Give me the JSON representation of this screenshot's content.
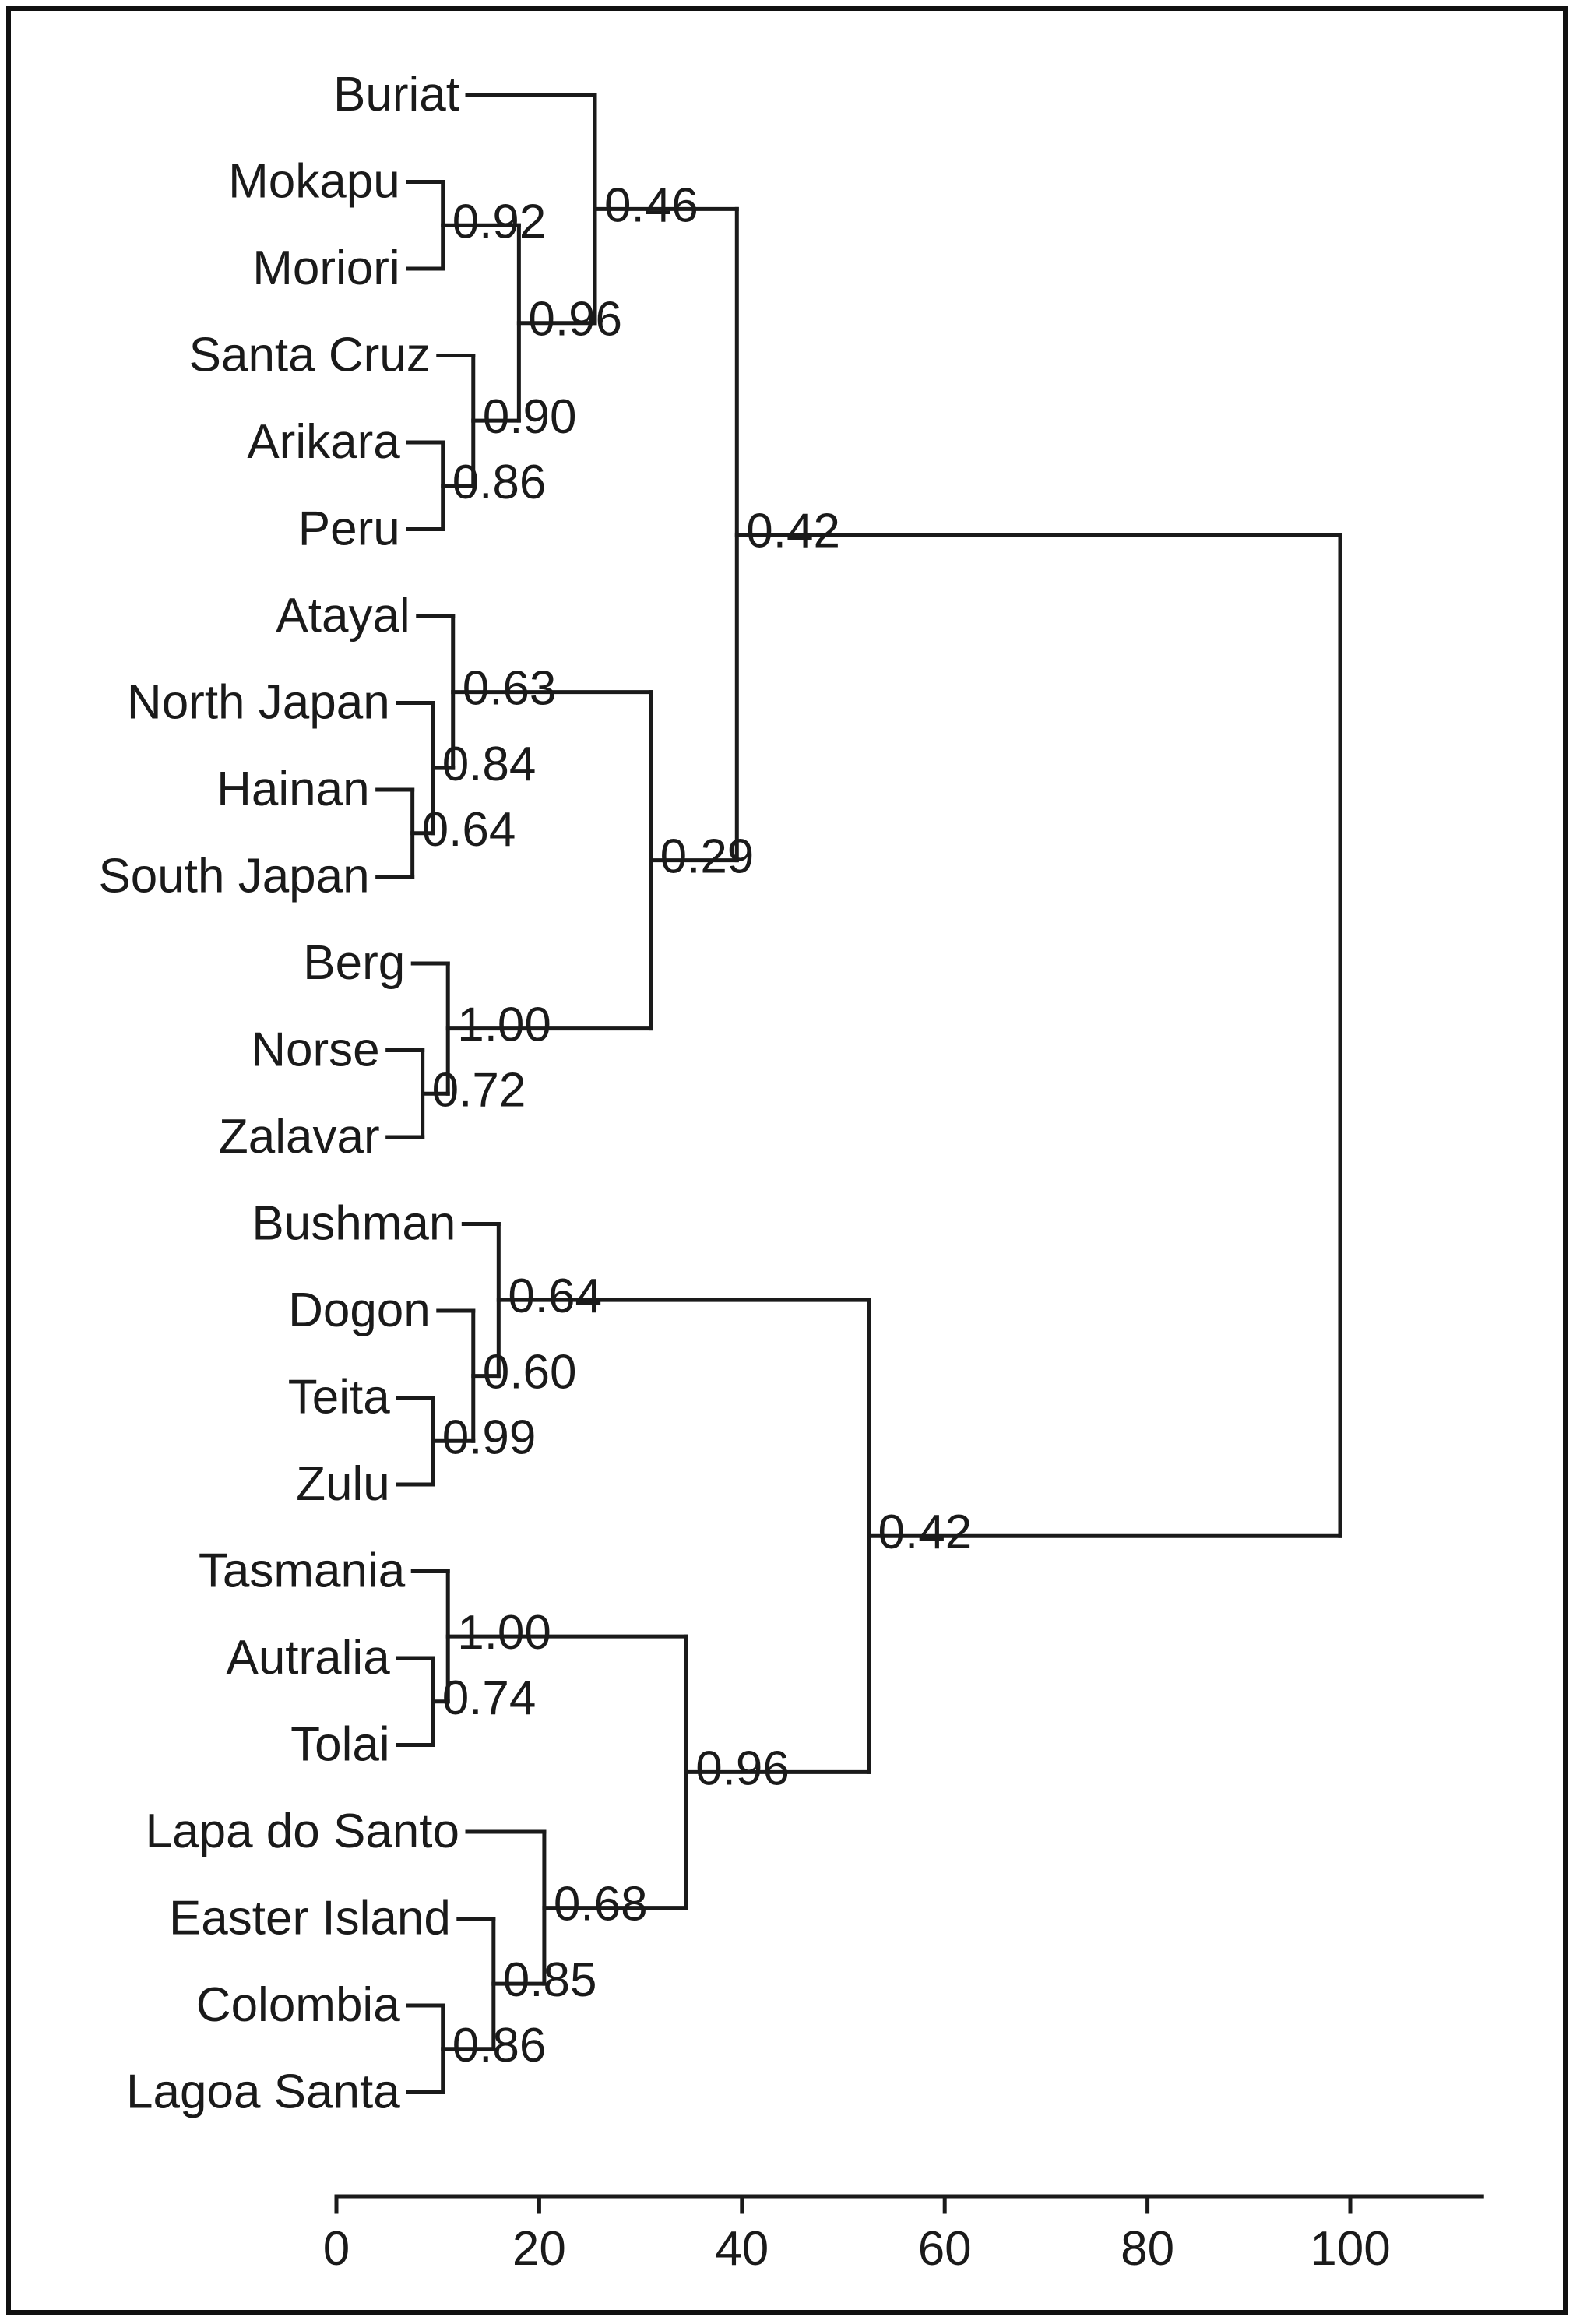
{
  "chart_data": {
    "type": "dendrogram",
    "leaves": [
      "Buriat",
      "Mokapu",
      "Moriori",
      "Santa Cruz",
      "Arikara",
      "Peru",
      "Atayal",
      "North Japan",
      "Hainan",
      "South Japan",
      "Berg",
      "Norse",
      "Zalavar",
      "Bushman",
      "Dogon",
      "Teita",
      "Zulu",
      "Tasmania",
      "Autralia",
      "Tolai",
      "Lapa do Santo",
      "Easter Island",
      "Colombia",
      "Lagoa Santa"
    ],
    "merges": [
      {
        "id": "mok_mor",
        "children": [
          "Mokapu",
          "Moriori"
        ],
        "height": 10.5,
        "support": "0.92"
      },
      {
        "id": "ari_per",
        "children": [
          "Arikara",
          "Peru"
        ],
        "height": 10.5,
        "support": "0.86"
      },
      {
        "id": "sc_ap",
        "children": [
          "Santa Cruz",
          "ari_per"
        ],
        "height": 13.5,
        "support": "0.90"
      },
      {
        "id": "mm_sc",
        "children": [
          "mok_mor",
          "sc_ap"
        ],
        "height": 18,
        "support": "0.96"
      },
      {
        "id": "bur_grp",
        "children": [
          "Buriat",
          "mm_sc"
        ],
        "height": 25.5,
        "support": "0.46"
      },
      {
        "id": "hai_sj",
        "children": [
          "Hainan",
          "South Japan"
        ],
        "height": 7.5,
        "support": "0.64"
      },
      {
        "id": "nj_grp",
        "children": [
          "North Japan",
          "hai_sj"
        ],
        "height": 9.5,
        "support": "0.84"
      },
      {
        "id": "ata_grp",
        "children": [
          "Atayal",
          "nj_grp"
        ],
        "height": 11.5,
        "support": "0.63"
      },
      {
        "id": "nor_zal",
        "children": [
          "Norse",
          "Zalavar"
        ],
        "height": 8.5,
        "support": "0.72"
      },
      {
        "id": "berg_grp",
        "children": [
          "Berg",
          "nor_zal"
        ],
        "height": 11,
        "support": "1.00"
      },
      {
        "id": "asia_eur",
        "children": [
          "ata_grp",
          "berg_grp"
        ],
        "height": 31,
        "support": "0.29"
      },
      {
        "id": "north",
        "children": [
          "bur_grp",
          "asia_eur"
        ],
        "height": 39.5,
        "support": "0.42"
      },
      {
        "id": "tei_zul",
        "children": [
          "Teita",
          "Zulu"
        ],
        "height": 9.5,
        "support": "0.99"
      },
      {
        "id": "dog_grp",
        "children": [
          "Dogon",
          "tei_zul"
        ],
        "height": 13.5,
        "support": "0.60"
      },
      {
        "id": "africa",
        "children": [
          "Bushman",
          "dog_grp"
        ],
        "height": 16,
        "support": "0.64"
      },
      {
        "id": "aut_tol",
        "children": [
          "Autralia",
          "Tolai"
        ],
        "height": 9.5,
        "support": "0.74"
      },
      {
        "id": "tas_grp",
        "children": [
          "Tasmania",
          "aut_tol"
        ],
        "height": 11,
        "support": "1.00"
      },
      {
        "id": "col_lag",
        "children": [
          "Colombia",
          "Lagoa Santa"
        ],
        "height": 10.5,
        "support": "0.86"
      },
      {
        "id": "eas_grp",
        "children": [
          "Easter Island",
          "col_lag"
        ],
        "height": 15.5,
        "support": "0.85"
      },
      {
        "id": "lapa_grp",
        "children": [
          "Lapa do Santo",
          "eas_grp"
        ],
        "height": 20.5,
        "support": "0.68"
      },
      {
        "id": "oceania",
        "children": [
          "tas_grp",
          "lapa_grp"
        ],
        "height": 34.5,
        "support": "0.96"
      },
      {
        "id": "south",
        "children": [
          "africa",
          "oceania"
        ],
        "height": 52.5,
        "support": "0.42"
      },
      {
        "id": "root",
        "children": [
          "north",
          "south"
        ],
        "height": 99,
        "support": ""
      }
    ],
    "x_axis": {
      "ticks": [
        0,
        20,
        40,
        60,
        80,
        100
      ],
      "range": [
        0,
        113
      ]
    }
  }
}
